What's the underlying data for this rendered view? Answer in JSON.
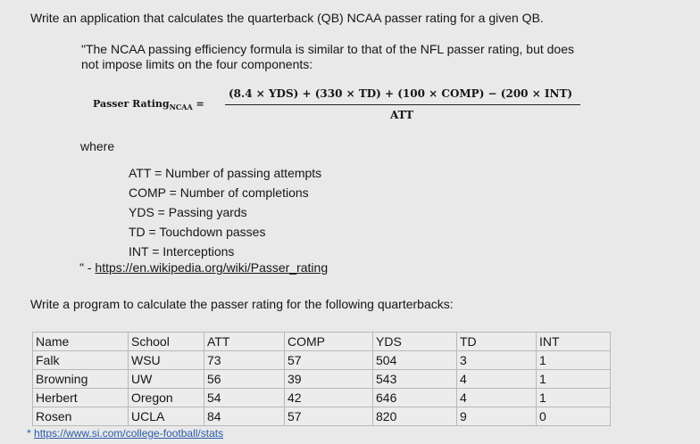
{
  "title": "Write an application that calculates the quarterback (QB) NCAA passer rating for a given QB.",
  "quote_lines": [
    "\"The NCAA passing efficiency formula is similar to that of the NFL passer rating, but does",
    "not impose limits on the four components:"
  ],
  "formula": {
    "label": "Passer Rating",
    "label_sub": "NCAA",
    "equals": "=",
    "numerator": "(8.4 × YDS) + (330 × TD) + (100 × COMP) − (200 × INT)",
    "denominator": "ATT"
  },
  "where_label": "where",
  "definitions": [
    "ATT = Number of passing attempts",
    "COMP = Number of completions",
    "YDS = Passing yards",
    "TD = Touchdown passes",
    "INT = Interceptions"
  ],
  "citation": {
    "prefix": "\" - ",
    "url": "https://en.wikipedia.org/wiki/Passer_rating"
  },
  "prompt": "Write a program to calculate the passer rating for the following quarterbacks:",
  "table": {
    "headers": [
      "Name",
      "School",
      "ATT",
      "COMP",
      "YDS",
      "TD",
      "INT"
    ],
    "rows": [
      [
        "Falk",
        "WSU",
        "73",
        "57",
        "504",
        "3",
        "1"
      ],
      [
        "Browning",
        "UW",
        "56",
        "39",
        "543",
        "4",
        "1"
      ],
      [
        "Herbert",
        "Oregon",
        "54",
        "42",
        "646",
        "4",
        "1"
      ],
      [
        "Rosen",
        "UCLA",
        "84",
        "57",
        "820",
        "9",
        "0"
      ]
    ]
  },
  "source": {
    "prefix": "* ",
    "url": "https://www.si.com/college-football/stats"
  }
}
